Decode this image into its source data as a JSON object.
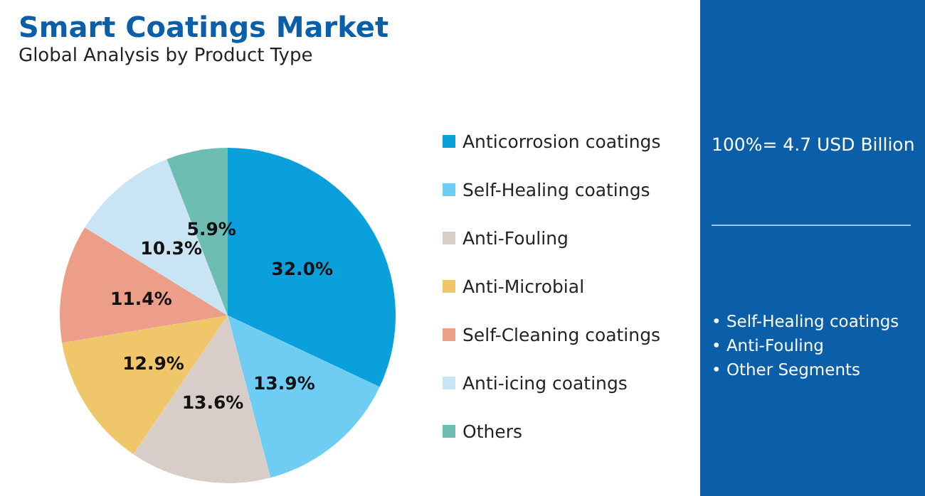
{
  "chart_data": {
    "type": "pie",
    "title": "Smart Coatings Market",
    "subtitle": "Global Analysis by Product Type",
    "categories": [
      "Anticorrosion coatings",
      "Self-Healing coatings",
      "Anti-Fouling",
      "Anti-Microbial",
      "Self-Cleaning coatings",
      "Anti-icing coatings",
      "Others"
    ],
    "values": [
      32.0,
      13.9,
      13.6,
      12.9,
      11.4,
      10.3,
      5.9
    ],
    "value_labels": [
      "32.0%",
      "13.9%",
      "13.6%",
      "12.9%",
      "11.4%",
      "10.3%",
      "5.9%"
    ],
    "colors": [
      "#0aa0dc",
      "#6fcdf3",
      "#d8cdc8",
      "#efc66a",
      "#ec9e88",
      "#c9e4f5",
      "#6dbdb3"
    ],
    "legend": "right",
    "annotations": [
      "100%= 4.7 USD Billion",
      "• Self-Healing coatings",
      "• Anti-Fouling",
      "• Other Segments"
    ]
  }
}
